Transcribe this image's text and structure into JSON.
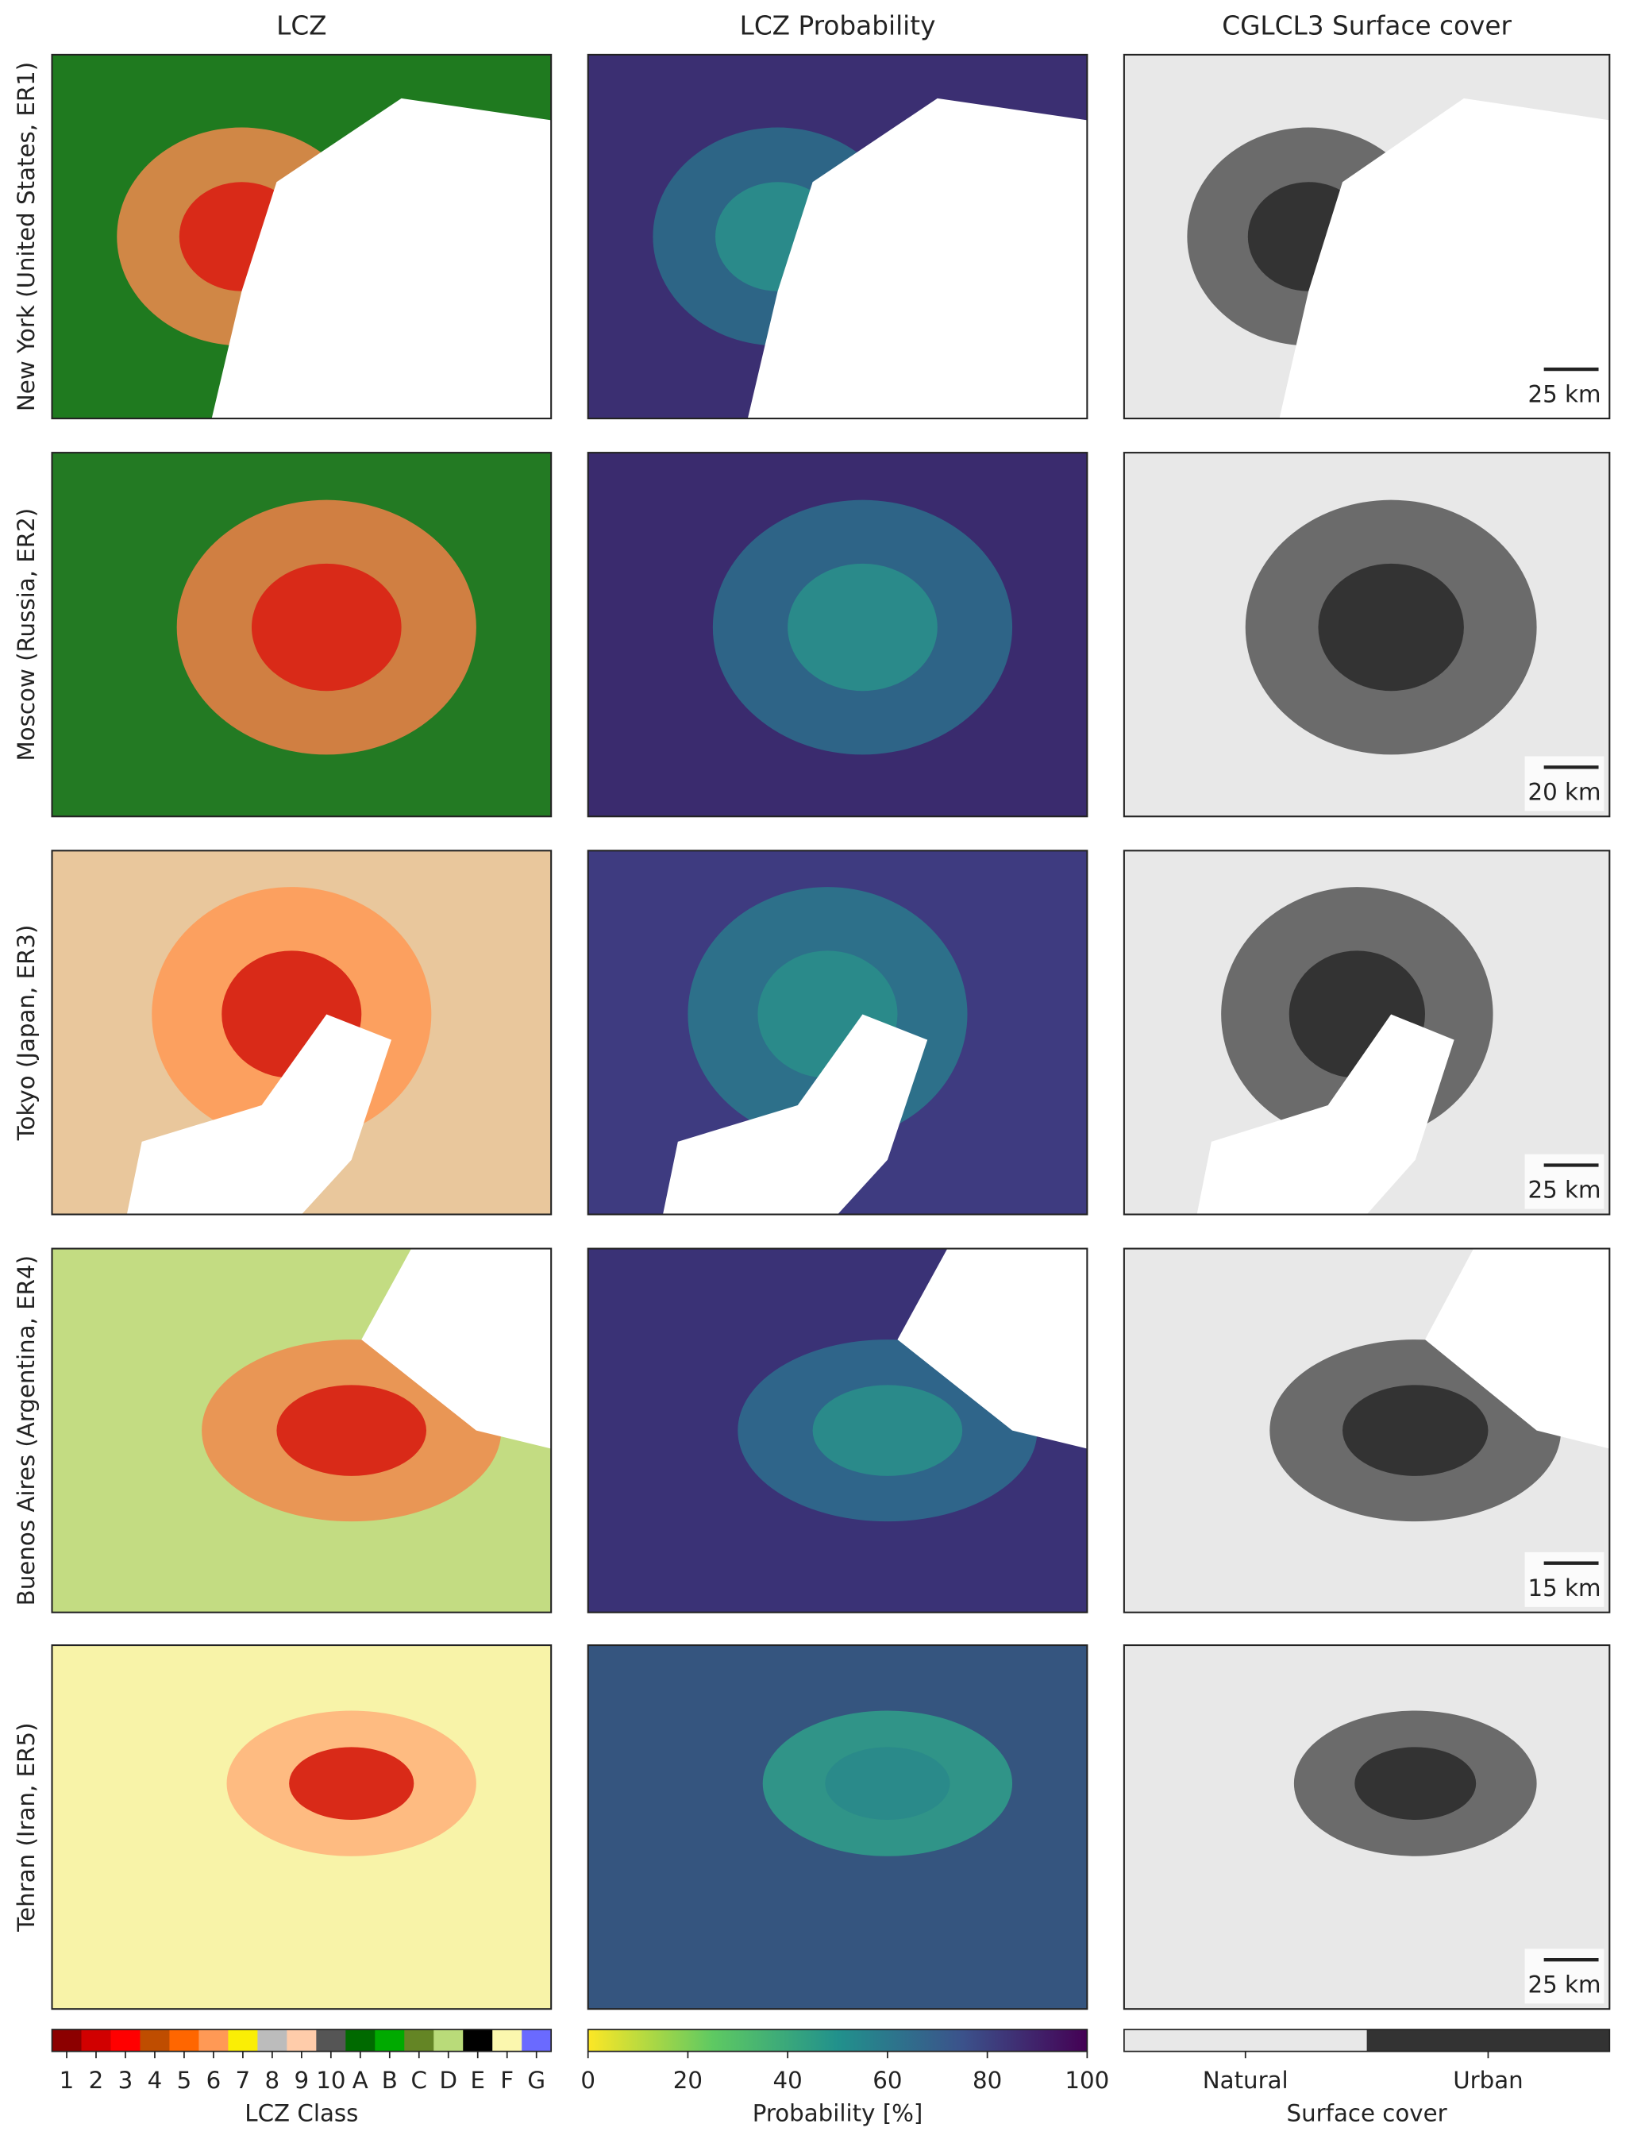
{
  "columns": [
    "LCZ",
    "LCZ Probability",
    "CGLCL3 Surface cover"
  ],
  "rows": [
    {
      "label": "New York (United States, ER1)",
      "scale_bar": "25 km"
    },
    {
      "label": "Moscow (Russia, ER2)",
      "scale_bar": "20 km"
    },
    {
      "label": "Tokyo (Japan, ER3)",
      "scale_bar": "25 km"
    },
    {
      "label": "Buenos Aires (Argentina, ER4)",
      "scale_bar": "15 km"
    },
    {
      "label": "Tehran (Iran, ER5)",
      "scale_bar": "25 km"
    }
  ],
  "legends": {
    "lcz": {
      "title": "LCZ Class",
      "classes": [
        {
          "label": "1",
          "color": "#8c0000"
        },
        {
          "label": "2",
          "color": "#d10000"
        },
        {
          "label": "3",
          "color": "#ff0000"
        },
        {
          "label": "4",
          "color": "#bf4d00"
        },
        {
          "label": "5",
          "color": "#ff6600"
        },
        {
          "label": "6",
          "color": "#ff9955"
        },
        {
          "label": "7",
          "color": "#faee05"
        },
        {
          "label": "8",
          "color": "#bcbcbc"
        },
        {
          "label": "9",
          "color": "#ffccaa"
        },
        {
          "label": "10",
          "color": "#555555"
        },
        {
          "label": "A",
          "color": "#006a00"
        },
        {
          "label": "B",
          "color": "#00aa00"
        },
        {
          "label": "C",
          "color": "#648525"
        },
        {
          "label": "D",
          "color": "#b9db79"
        },
        {
          "label": "E",
          "color": "#000000"
        },
        {
          "label": "F",
          "color": "#fbf7ae"
        },
        {
          "label": "G",
          "color": "#6a6aff"
        }
      ]
    },
    "probability": {
      "title": "Probability [%]",
      "lim": [
        0,
        100
      ],
      "ticks": [
        0,
        20,
        40,
        60,
        80,
        100
      ]
    },
    "surface": {
      "title": "Surface cover",
      "classes": [
        {
          "label": "Natural",
          "color": "#e8e8e8"
        },
        {
          "label": "Urban",
          "color": "#333333"
        }
      ]
    }
  }
}
